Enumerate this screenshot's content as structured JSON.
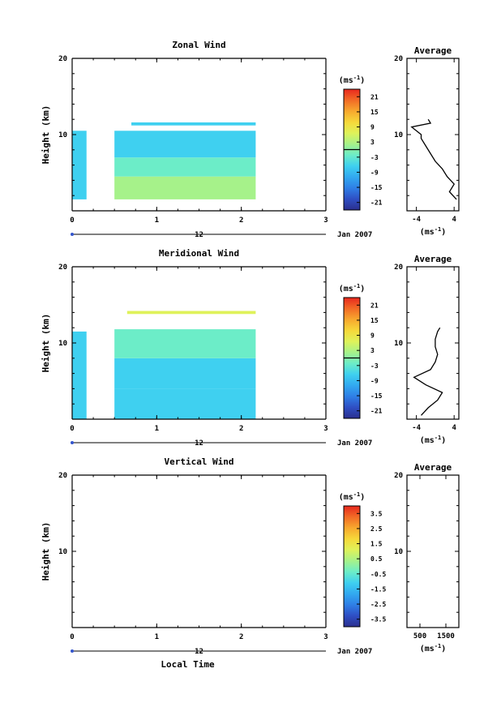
{
  "figure": {
    "date_label": "Jan 2007",
    "day_label": "12",
    "local_time_label": "Local Time",
    "average_label": "Average",
    "height_label": "Height (km)",
    "unit_label": "(ms",
    "unit_sup": "-1",
    "unit_close": ")"
  },
  "colors": {
    "colorbar_stops": [
      "#2b2f8f",
      "#2f4fc4",
      "#2f7fe6",
      "#32a9f0",
      "#3fd0f0",
      "#6cedc8",
      "#a6f28a",
      "#dff25a",
      "#f6d83a",
      "#f7a82e",
      "#f26b26",
      "#e8281e"
    ],
    "axis": "#000000"
  },
  "chart_data": [
    {
      "name": "zonal",
      "type": "heatmap",
      "title": "Zonal Wind",
      "xlabel": "",
      "ylabel": "Height (km)",
      "xlim": [
        0,
        3
      ],
      "ylim": [
        0,
        20
      ],
      "x_ticks": [
        "0",
        "1",
        "2",
        "3"
      ],
      "y_ticks": [
        "20",
        "10"
      ],
      "colorbar": {
        "unit": "(ms-1)",
        "ticks": [
          "21",
          "15",
          "9",
          "3",
          "-3",
          "-9",
          "-15",
          "-21"
        ],
        "range": [
          -24,
          24
        ],
        "contour_level": 0
      },
      "data_blocks": [
        {
          "x": [
            0.0,
            0.17
          ],
          "y": [
            1.5,
            10.5
          ],
          "value": -5
        },
        {
          "x": [
            0.5,
            2.17
          ],
          "y": [
            1.5,
            4.5
          ],
          "value": 1
        },
        {
          "x": [
            0.5,
            2.17
          ],
          "y": [
            4.5,
            7.0
          ],
          "value": -3
        },
        {
          "x": [
            0.5,
            2.17
          ],
          "y": [
            7.0,
            10.5
          ],
          "value": -7
        },
        {
          "x": [
            0.7,
            2.17
          ],
          "y": [
            11.2,
            11.6
          ],
          "value": -7
        }
      ],
      "average_profile": {
        "title": "Average",
        "xlim": [
          -6,
          5
        ],
        "x_ticks": [
          "-4",
          "4"
        ],
        "x_unit": "(ms-1)",
        "height_km": [
          1.5,
          2.5,
          3.5,
          4.5,
          5.5,
          6.5,
          7.5,
          8.5,
          9.5,
          10.0,
          10.5,
          11.0,
          11.5,
          12.0
        ],
        "values": [
          4.5,
          3.0,
          4.0,
          2.5,
          1.5,
          0.0,
          -1.0,
          -2.0,
          -3.0,
          -3.0,
          -4.0,
          -5.0,
          -1.0,
          -1.5
        ]
      }
    },
    {
      "name": "meridional",
      "type": "heatmap",
      "title": "Meridional Wind",
      "xlabel": "",
      "ylabel": "Height (km)",
      "xlim": [
        0,
        3
      ],
      "ylim": [
        0,
        20
      ],
      "x_ticks": [
        "0",
        "1",
        "2",
        "3"
      ],
      "y_ticks": [
        "20",
        "10"
      ],
      "colorbar": {
        "unit": "(ms-1)",
        "ticks": [
          "21",
          "15",
          "9",
          "3",
          "-3",
          "-9",
          "-15",
          "-21"
        ],
        "range": [
          -24,
          24
        ],
        "contour_level": 0
      },
      "data_blocks": [
        {
          "x": [
            0.0,
            0.17
          ],
          "y": [
            0.0,
            11.5
          ],
          "value": -6
        },
        {
          "x": [
            0.5,
            2.17
          ],
          "y": [
            0.0,
            4.0
          ],
          "value": -7
        },
        {
          "x": [
            0.5,
            2.17
          ],
          "y": [
            4.0,
            8.0
          ],
          "value": -8
        },
        {
          "x": [
            0.5,
            2.17
          ],
          "y": [
            8.0,
            11.8
          ],
          "value": -2
        },
        {
          "x": [
            0.65,
            2.17
          ],
          "y": [
            13.8,
            14.2
          ],
          "value": 5
        }
      ],
      "average_profile": {
        "title": "Average",
        "xlim": [
          -6,
          5
        ],
        "x_ticks": [
          "-4",
          "4"
        ],
        "x_unit": "(ms-1)",
        "height_km": [
          0.5,
          1.5,
          2.5,
          3.5,
          4.5,
          5.5,
          6.5,
          7.5,
          8.5,
          9.5,
          10.5,
          11.5,
          12.0
        ],
        "values": [
          -3.0,
          -1.5,
          0.5,
          1.5,
          -2.0,
          -4.5,
          -1.0,
          0.0,
          0.5,
          0.0,
          0.0,
          0.5,
          1.0
        ]
      }
    },
    {
      "name": "vertical",
      "type": "heatmap",
      "title": "Vertical Wind",
      "xlabel": "Local Time",
      "ylabel": "Height (km)",
      "xlim": [
        0,
        3
      ],
      "ylim": [
        0,
        20
      ],
      "x_ticks": [
        "0",
        "1",
        "2",
        "3"
      ],
      "y_ticks": [
        "20",
        "10"
      ],
      "colorbar": {
        "unit": "(ms-1)",
        "ticks": [
          "3.5",
          "2.5",
          "1.5",
          "0.5",
          "-0.5",
          "-1.5",
          "-2.5",
          "-3.5"
        ],
        "range": [
          -4,
          4
        ],
        "contour_level": null
      },
      "data_blocks": [],
      "average_profile": {
        "title": "Average",
        "xlim": [
          0,
          2000
        ],
        "x_ticks": [
          "500",
          "1500"
        ],
        "x_unit": "(ms-1)",
        "height_km": [],
        "values": []
      }
    }
  ]
}
